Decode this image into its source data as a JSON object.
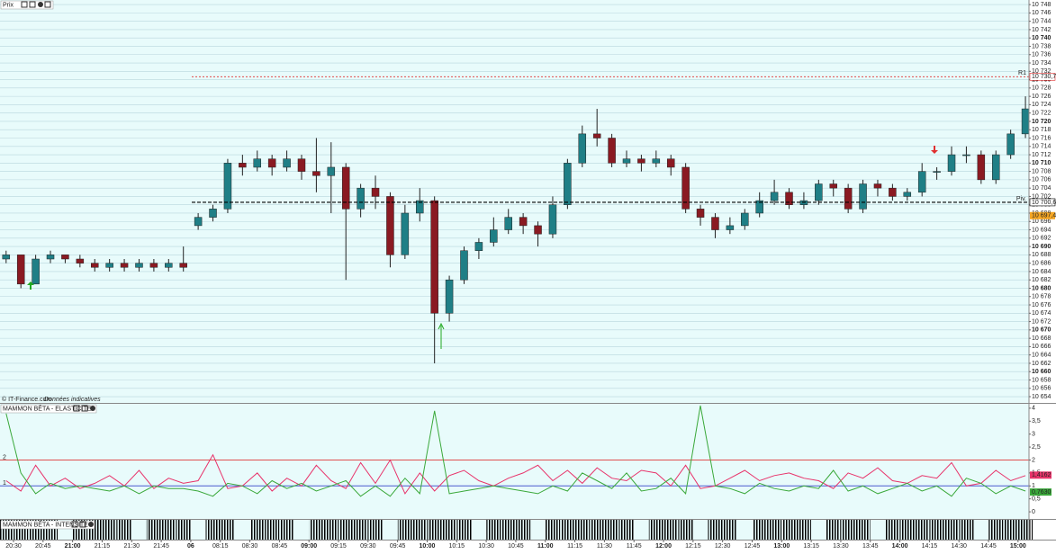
{
  "chart_data": [
    {
      "type": "candlestick",
      "title": "Prix",
      "source": "© IT-Finance.com",
      "source_note": "Données indicatives",
      "x": [
        -0.25,
        0.25,
        0.75,
        1.25,
        1.75,
        2.25,
        2.75,
        3.25,
        3.75,
        4.25,
        4.75,
        5.25,
        5.75,
        6.25,
        6.75,
        7.25,
        7.75,
        8.25,
        8.75,
        9.25,
        9.75,
        10.25,
        10.75,
        11.25,
        11.75,
        12.25,
        12.75,
        13.25,
        13.75,
        14.25,
        14.75,
        15.25,
        15.75,
        16.25,
        16.75,
        17.25,
        17.75,
        18.25,
        18.75,
        19.25,
        19.75,
        20.25,
        20.75,
        21.25,
        21.75,
        22.25,
        22.75,
        23.25,
        23.75,
        24.25,
        24.75,
        25.25,
        25.75,
        26.25,
        26.75,
        27.25,
        27.75,
        28.25,
        28.75,
        29.25,
        29.75,
        30.25,
        30.75,
        31.25,
        31.75,
        32.25,
        32.75,
        33.25,
        33.75,
        34.25
      ],
      "open": [
        10687,
        10688,
        10681,
        10687,
        10688,
        10687,
        10686,
        10685,
        10686,
        10685,
        10686,
        10685,
        10686,
        10695,
        10697,
        10699,
        10710,
        10709,
        10711,
        10709,
        10711,
        10708,
        10707,
        10709,
        10699,
        10704,
        10702,
        10688,
        10698,
        10701,
        10674,
        10682,
        10689,
        10691,
        10694,
        10697,
        10695,
        10693,
        10700,
        10710,
        10717,
        10716,
        10710,
        10711,
        10710,
        10711,
        10709,
        10699,
        10697,
        10694,
        10695,
        10698,
        10701,
        10703,
        10700,
        10701,
        10705,
        10704,
        10699,
        10705,
        10704,
        10702,
        10703,
        10708,
        10708,
        10712,
        10712,
        10706,
        10712,
        10717
      ],
      "high": [
        10689,
        10688,
        10688,
        10689,
        10688,
        10688,
        10687,
        10687,
        10687,
        10687,
        10687,
        10687,
        10690,
        10698,
        10700,
        10711,
        10712,
        10713,
        10712,
        10713,
        10712,
        10716,
        10715,
        10710,
        10705,
        10707,
        10703,
        10700,
        10704,
        10702,
        10683,
        10690,
        10692,
        10697,
        10699,
        10698,
        10696,
        10702,
        10711,
        10719,
        10723,
        10717,
        10713,
        10712,
        10713,
        10712,
        10710,
        10700,
        10698,
        10697,
        10699,
        10703,
        10706,
        10704,
        10703,
        10706,
        10706,
        10705,
        10706,
        10706,
        10705,
        10704,
        10710,
        10709,
        10714,
        10714,
        10713,
        10713,
        10718,
        10726
      ],
      "low": [
        10686,
        10680,
        10681,
        10686,
        10686,
        10685,
        10684,
        10684,
        10684,
        10684,
        10684,
        10684,
        10684,
        10694,
        10696,
        10698,
        10707,
        10708,
        10707,
        10708,
        10706,
        10703,
        10698,
        10682,
        10697,
        10699,
        10685,
        10687,
        10696,
        10662,
        10672,
        10681,
        10687,
        10690,
        10693,
        10693,
        10690,
        10692,
        10699,
        10709,
        10714,
        10709,
        10709,
        10708,
        10709,
        10707,
        10698,
        10695,
        10692,
        10693,
        10694,
        10697,
        10700,
        10699,
        10699,
        10700,
        10702,
        10698,
        10698,
        10702,
        10701,
        10701,
        10702,
        10706,
        10707,
        10710,
        10705,
        10705,
        10711,
        10716
      ],
      "close": [
        10688,
        10681,
        10687,
        10688,
        10687,
        10686,
        10685,
        10686,
        10685,
        10686,
        10685,
        10686,
        10685,
        10697,
        10699,
        10710,
        10709,
        10711,
        10709,
        10711,
        10708,
        10707,
        10709,
        10699,
        10704,
        10702,
        10688,
        10698,
        10701,
        10674,
        10682,
        10689,
        10691,
        10694,
        10697,
        10695,
        10693,
        10700,
        10710,
        10717,
        10716,
        10710,
        10711,
        10710,
        10711,
        10709,
        10699,
        10697,
        10694,
        10695,
        10698,
        10701,
        10703,
        10700,
        10701,
        10705,
        10704,
        10699,
        10705,
        10704,
        10702,
        10703,
        10708,
        10708,
        10712,
        10712,
        10706,
        10712,
        10717,
        10723
      ],
      "up_color": "#1f7f86",
      "down_color": "#8a1a22",
      "levels": [
        {
          "name": "R1",
          "value": 10730.7,
          "label": "10 730,7",
          "color": "#e03030"
        },
        {
          "name": "Piv.",
          "value": 10700.6,
          "label": "10 700,6",
          "color": "#000000"
        }
      ],
      "price_labels": [
        {
          "value": 10697.4,
          "label": "10 697,4",
          "color": "#f5a623"
        }
      ],
      "ylim": [
        10652.5,
        10749.1
      ],
      "yticks": [
        {
          "value": 10654,
          "label": "10 654"
        },
        {
          "value": 10656,
          "label": "10 656"
        },
        {
          "value": 10658,
          "label": "10 658"
        },
        {
          "value": 10660,
          "label": "10 660"
        },
        {
          "value": 10662,
          "label": "10 662"
        },
        {
          "value": 10664,
          "label": "10 664"
        },
        {
          "value": 10666,
          "label": "10 666"
        },
        {
          "value": 10668,
          "label": "10 668"
        },
        {
          "value": 10670,
          "label": "10 670"
        },
        {
          "value": 10672,
          "label": "10 672"
        },
        {
          "value": 10674,
          "label": "10 674"
        },
        {
          "value": 10676,
          "label": "10 676"
        },
        {
          "value": 10678,
          "label": "10 678"
        },
        {
          "value": 10680,
          "label": "10 680"
        },
        {
          "value": 10682,
          "label": "10 682"
        },
        {
          "value": 10684,
          "label": "10 684"
        },
        {
          "value": 10686,
          "label": "10 686"
        },
        {
          "value": 10688,
          "label": "10 688"
        },
        {
          "value": 10690,
          "label": "10 690"
        },
        {
          "value": 10692,
          "label": "10 692"
        },
        {
          "value": 10694,
          "label": "10 694"
        },
        {
          "value": 10696,
          "label": "10 696"
        },
        {
          "value": 10698,
          "label": "10 698"
        },
        {
          "value": 10700,
          "label": "10 700"
        },
        {
          "value": 10702,
          "label": "10 702"
        },
        {
          "value": 10704,
          "label": "10 704"
        },
        {
          "value": 10706,
          "label": "10 706"
        },
        {
          "value": 10708,
          "label": "10 708"
        },
        {
          "value": 10710,
          "label": "10 710"
        },
        {
          "value": 10712,
          "label": "10 712"
        },
        {
          "value": 10714,
          "label": "10 714"
        },
        {
          "value": 10716,
          "label": "10 716"
        },
        {
          "value": 10718,
          "label": "10 718"
        },
        {
          "value": 10720,
          "label": "10 720"
        },
        {
          "value": 10722,
          "label": "10 722"
        },
        {
          "value": 10724,
          "label": "10 724"
        },
        {
          "value": 10726,
          "label": "10 726"
        },
        {
          "value": 10728,
          "label": "10 728"
        },
        {
          "value": 10730,
          "label": "10 730"
        },
        {
          "value": 10732,
          "label": "10 732"
        },
        {
          "value": 10734,
          "label": "10 734"
        },
        {
          "value": 10736,
          "label": "10 736"
        },
        {
          "value": 10738,
          "label": "10 738"
        },
        {
          "value": 10740,
          "label": "10 740"
        },
        {
          "value": 10742,
          "label": "10 742"
        },
        {
          "value": 10744,
          "label": "10 744"
        },
        {
          "value": 10746,
          "label": "10 746"
        },
        {
          "value": 10748,
          "label": "10 748"
        }
      ],
      "grid": true
    },
    {
      "type": "line",
      "title": "MAMMON BÊTA - ELASTICITE",
      "x": [
        -0.25,
        0.25,
        0.75,
        1.25,
        1.75,
        2.25,
        2.75,
        3.25,
        3.75,
        4.25,
        4.75,
        5.25,
        5.75,
        6.25,
        6.75,
        7.25,
        7.75,
        8.25,
        8.75,
        9.25,
        9.75,
        10.25,
        10.75,
        11.25,
        11.75,
        12.25,
        12.75,
        13.25,
        13.75,
        14.25,
        14.75,
        15.25,
        15.75,
        16.25,
        16.75,
        17.25,
        17.75,
        18.25,
        18.75,
        19.25,
        19.75,
        20.25,
        20.75,
        21.25,
        21.75,
        22.25,
        22.75,
        23.25,
        23.75,
        24.25,
        24.75,
        25.25,
        25.75,
        26.25,
        26.75,
        27.25,
        27.75,
        28.25,
        28.75,
        29.25,
        29.75,
        30.25,
        30.75,
        31.25,
        31.75,
        32.25,
        32.75,
        33.25,
        33.75,
        34.25
      ],
      "series": [
        {
          "color": "#e8336a",
          "values": [
            1.2,
            0.8,
            1.8,
            1.0,
            1.3,
            0.9,
            1.1,
            1.4,
            1.0,
            1.6,
            0.9,
            1.3,
            1.1,
            1.2,
            2.2,
            0.9,
            1.0,
            1.5,
            0.8,
            1.3,
            1.0,
            1.8,
            1.2,
            0.9,
            1.9,
            1.1,
            2.0,
            0.7,
            1.5,
            0.8,
            1.4,
            1.6,
            1.2,
            1.0,
            1.3,
            1.5,
            1.8,
            1.2,
            1.6,
            1.1,
            1.7,
            1.3,
            1.2,
            1.6,
            1.5,
            1.0,
            1.8,
            0.9,
            1.0,
            1.3,
            1.6,
            1.2,
            1.4,
            1.5,
            1.3,
            1.2,
            0.9,
            1.5,
            1.3,
            1.7,
            1.2,
            1.1,
            1.4,
            1.3,
            1.9,
            1.0,
            1.1,
            1.6,
            1.2,
            1.4
          ]
        },
        {
          "color": "#3aa83a",
          "values": [
            3.8,
            1.5,
            0.7,
            1.1,
            0.9,
            1.0,
            0.9,
            0.8,
            1.0,
            0.7,
            1.0,
            0.9,
            0.9,
            0.8,
            0.6,
            1.1,
            1.0,
            0.7,
            1.2,
            0.9,
            1.1,
            0.8,
            1.0,
            1.2,
            0.6,
            1.0,
            0.6,
            1.3,
            0.7,
            3.9,
            0.7,
            0.8,
            0.9,
            1.0,
            0.9,
            0.8,
            0.7,
            1.0,
            0.8,
            1.5,
            1.2,
            0.9,
            1.5,
            0.8,
            0.9,
            1.3,
            0.7,
            4.1,
            1.0,
            0.9,
            0.7,
            1.1,
            0.9,
            0.8,
            1.0,
            0.9,
            1.6,
            0.8,
            1.0,
            0.7,
            0.9,
            1.1,
            0.8,
            1.0,
            0.6,
            1.3,
            1.1,
            0.7,
            1.0,
            0.8
          ]
        }
      ],
      "hlines": [
        {
          "value": 2,
          "color": "#e05050"
        },
        {
          "value": 1,
          "color": "#4a5ad0"
        }
      ],
      "last_labels": [
        {
          "value": 1.4162,
          "label": "1,4162",
          "color": "#e8336a"
        },
        {
          "value": 0.763,
          "label": "0,7630",
          "color": "#3aa83a"
        }
      ],
      "ylim": [
        -0.24,
        4.17
      ],
      "yticks": [
        0,
        {
          "value": 0.5,
          "label": "0,5"
        },
        1,
        {
          "value": 1.5,
          "label": "1,5"
        },
        2,
        {
          "value": 2.5,
          "label": "2,5"
        },
        3,
        {
          "value": 3.5,
          "label": "3,5"
        },
        4
      ]
    },
    {
      "type": "bar",
      "title": "MAMMON BÊTA - INTENSITE",
      "x": [
        -0.25,
        0.25,
        0.75,
        1.25,
        1.75,
        2.25,
        2.75,
        3.25,
        3.75,
        4.25,
        4.75,
        5.25,
        5.75,
        6.25,
        6.75,
        7.25,
        7.75,
        8.25,
        8.75,
        9.25,
        9.75,
        10.25,
        10.75,
        11.25,
        11.75,
        12.25,
        12.75,
        13.25,
        13.75,
        14.25,
        14.75,
        15.25,
        15.75,
        16.25,
        16.75,
        17.25,
        17.75,
        18.25,
        18.75,
        19.25,
        19.75,
        20.25,
        20.75,
        21.25,
        21.75,
        22.25,
        22.75,
        23.25,
        23.75,
        24.25,
        24.75,
        25.25,
        25.75,
        26.25,
        26.75,
        27.25,
        27.75,
        28.25,
        28.75,
        29.25,
        29.75,
        30.25,
        30.75,
        31.25,
        31.75,
        32.25,
        32.75,
        33.25,
        33.75,
        34.25
      ],
      "values": [
        1,
        1,
        1,
        1,
        0,
        1,
        1,
        1,
        1,
        0,
        1,
        1,
        1,
        0,
        1,
        1,
        0,
        1,
        1,
        1,
        0,
        1,
        1,
        1,
        1,
        1,
        0,
        1,
        1,
        1,
        1,
        1,
        0,
        1,
        1,
        1,
        0,
        1,
        1,
        1,
        1,
        1,
        1,
        0,
        1,
        1,
        1,
        0,
        1,
        1,
        0,
        1,
        1,
        1,
        1,
        0,
        1,
        1,
        1,
        0,
        1,
        1,
        1,
        1,
        1,
        1,
        0,
        1,
        1,
        1
      ],
      "color": "#000000",
      "ylim": [
        0,
        1
      ],
      "xlim": [
        -0.457,
        34.37
      ],
      "xticks": [
        {
          "value": 0,
          "label": "20:30"
        },
        {
          "value": 1,
          "label": "20:45"
        },
        {
          "value": 2,
          "label": "21:00"
        },
        {
          "value": 3,
          "label": "21:15"
        },
        {
          "value": 4,
          "label": "21:30"
        },
        {
          "value": 5,
          "label": "21:45"
        },
        {
          "value": 6,
          "label": "06"
        },
        {
          "value": 7,
          "label": "08:15"
        },
        {
          "value": 8,
          "label": "08:30"
        },
        {
          "value": 9,
          "label": "08:45"
        },
        {
          "value": 10,
          "label": "09:00"
        },
        {
          "value": 11,
          "label": "09:15"
        },
        {
          "value": 12,
          "label": "09:30"
        },
        {
          "value": 13,
          "label": "09:45"
        },
        {
          "value": 14,
          "label": "10:00"
        },
        {
          "value": 15,
          "label": "10:15"
        },
        {
          "value": 16,
          "label": "10:30"
        },
        {
          "value": 17,
          "label": "10:45"
        },
        {
          "value": 18,
          "label": "11:00"
        },
        {
          "value": 19,
          "label": "11:15"
        },
        {
          "value": 20,
          "label": "11:30"
        },
        {
          "value": 21,
          "label": "11:45"
        },
        {
          "value": 22,
          "label": "12:00"
        },
        {
          "value": 23,
          "label": "12:15"
        },
        {
          "value": 24,
          "label": "12:30"
        },
        {
          "value": 25,
          "label": "12:45"
        },
        {
          "value": 26,
          "label": "13:00"
        },
        {
          "value": 27,
          "label": "13:15"
        },
        {
          "value": 28,
          "label": "13:30"
        },
        {
          "value": 29,
          "label": "13:45"
        },
        {
          "value": 30,
          "label": "14:00"
        },
        {
          "value": 31,
          "label": "14:15"
        },
        {
          "value": 32,
          "label": "14:30"
        },
        {
          "value": 33,
          "label": "14:45"
        },
        {
          "value": 34,
          "label": "15:00"
        }
      ]
    }
  ]
}
